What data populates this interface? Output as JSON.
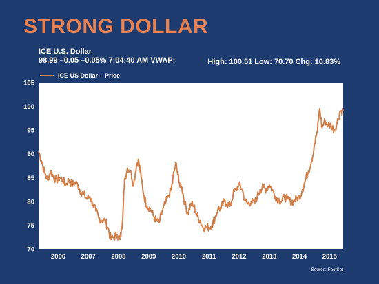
{
  "slide": {
    "title": "STRONG DOLLAR",
    "subtitle": "ICE U.S. Dollar",
    "quote_line": "98.99 –0.05 –0.05% 7:04:40 AM VWAP:",
    "stats": "High: 100.51 Low: 70.70 Chg: 10.83%",
    "source": "Source: FactSet"
  },
  "colors": {
    "background": "#1d3b6e",
    "title": "#e8804f",
    "line": "#d4804a",
    "plot_bg": "#ffffff"
  },
  "chart_data": {
    "type": "line",
    "title": "ICE U.S. Dollar",
    "xlabel": "",
    "ylabel": "",
    "xlim": [
      2005.85,
      2015.95
    ],
    "ylim": [
      70,
      105
    ],
    "yticks": [
      70,
      75,
      80,
      85,
      90,
      95,
      100,
      105
    ],
    "xtick_labels": [
      "2006",
      "2007",
      "2008",
      "2009",
      "2010",
      "2011",
      "2012",
      "2013",
      "2014",
      "2015"
    ],
    "xtick_positions": [
      2006.5,
      2007.5,
      2008.5,
      2009.5,
      2010.5,
      2011.5,
      2012.5,
      2013.5,
      2014.5,
      2015.5
    ],
    "grid": false,
    "legend": "top-left",
    "series": [
      {
        "name": "ICE US Dollar – Price",
        "x": [
          2005.85,
          2005.95,
          2006.05,
          2006.15,
          2006.25,
          2006.35,
          2006.45,
          2006.55,
          2006.65,
          2006.75,
          2006.85,
          2006.95,
          2007.05,
          2007.15,
          2007.25,
          2007.35,
          2007.45,
          2007.55,
          2007.65,
          2007.75,
          2007.85,
          2007.95,
          2008.05,
          2008.15,
          2008.25,
          2008.35,
          2008.45,
          2008.55,
          2008.6,
          2008.65,
          2008.7,
          2008.8,
          2008.9,
          2009.0,
          2009.1,
          2009.17,
          2009.25,
          2009.35,
          2009.45,
          2009.55,
          2009.65,
          2009.75,
          2009.85,
          2009.95,
          2010.05,
          2010.15,
          2010.25,
          2010.35,
          2010.42,
          2010.5,
          2010.6,
          2010.7,
          2010.8,
          2010.9,
          2011.0,
          2011.1,
          2011.2,
          2011.3,
          2011.4,
          2011.5,
          2011.6,
          2011.7,
          2011.8,
          2011.9,
          2012.0,
          2012.1,
          2012.2,
          2012.3,
          2012.4,
          2012.5,
          2012.6,
          2012.7,
          2012.8,
          2012.9,
          2013.0,
          2013.1,
          2013.2,
          2013.3,
          2013.4,
          2013.5,
          2013.6,
          2013.7,
          2013.8,
          2013.9,
          2014.0,
          2014.1,
          2014.2,
          2014.3,
          2014.4,
          2014.5,
          2014.6,
          2014.7,
          2014.8,
          2014.9,
          2015.0,
          2015.1,
          2015.17,
          2015.25,
          2015.35,
          2015.45,
          2015.55,
          2015.65,
          2015.75,
          2015.85,
          2015.95
        ],
        "values": [
          90.5,
          88.5,
          86.0,
          84.5,
          86.5,
          85.0,
          84.5,
          85.0,
          84.5,
          83.5,
          84.5,
          83.5,
          84.0,
          83.5,
          82.0,
          81.5,
          80.5,
          81.0,
          79.5,
          78.0,
          76.5,
          76.0,
          76.0,
          74.5,
          72.0,
          72.5,
          73.0,
          72.0,
          74.0,
          78.0,
          84.5,
          87.0,
          86.5,
          83.5,
          88.0,
          88.5,
          85.0,
          81.0,
          79.0,
          78.5,
          77.0,
          76.0,
          75.5,
          78.0,
          79.5,
          81.0,
          82.5,
          86.5,
          88.0,
          84.0,
          83.0,
          79.5,
          77.5,
          79.5,
          79.0,
          77.0,
          76.0,
          74.5,
          74.5,
          74.5,
          75.0,
          76.5,
          78.5,
          78.5,
          80.0,
          79.5,
          79.0,
          81.5,
          82.5,
          83.5,
          82.5,
          80.0,
          79.5,
          80.0,
          79.5,
          81.0,
          82.5,
          83.0,
          82.5,
          83.5,
          82.5,
          81.0,
          80.5,
          80.0,
          81.0,
          80.5,
          80.0,
          80.0,
          80.5,
          81.0,
          82.5,
          84.5,
          86.5,
          88.5,
          92.0,
          95.0,
          99.5,
          95.5,
          97.0,
          96.0,
          96.0,
          95.0,
          96.5,
          99.0,
          99.0
        ]
      }
    ]
  }
}
